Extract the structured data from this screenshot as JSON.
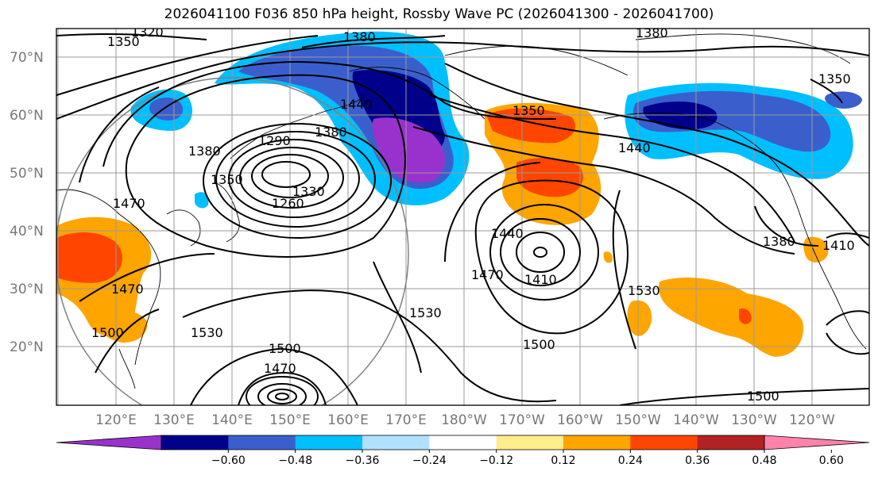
{
  "title": "2026041100 F036 850 hPa height, Rossby Wave PC (2026041300 - 2026041700)",
  "lat_labels": [
    "70°N",
    "60°N",
    "50°N",
    "40°N",
    "30°N",
    "20°N"
  ],
  "lon_labels": [
    "120°E",
    "130°E",
    "140°E",
    "150°E",
    "160°E",
    "170°E",
    "180°W",
    "170°W",
    "160°W",
    "150°W",
    "140°W",
    "130°W",
    "120°W"
  ],
  "contour_labels": [
    "1320",
    "1350",
    "1380",
    "1380",
    "1380",
    "1440",
    "1290",
    "1380",
    "1350",
    "1330",
    "1260",
    "1350",
    "1440",
    "1470",
    "1470",
    "1500",
    "1530",
    "1440",
    "1410",
    "1470",
    "1530",
    "1500",
    "1530",
    "1500",
    "1470",
    "1380",
    "1410",
    "1500",
    "1350"
  ],
  "colorbar": {
    "colors": [
      "#9932cc",
      "#00008b",
      "#3a5fcd",
      "#00bfff",
      "#b0e2ff",
      "#ffffff",
      "#ffec8b",
      "#ffa500",
      "#ff4500",
      "#b22222",
      "#ff82ab"
    ],
    "tick_labels": [
      "−0.60",
      "−0.48",
      "−0.36",
      "−0.24",
      "−0.12",
      "0.12",
      "0.24",
      "0.36",
      "0.48",
      "0.60"
    ]
  }
}
